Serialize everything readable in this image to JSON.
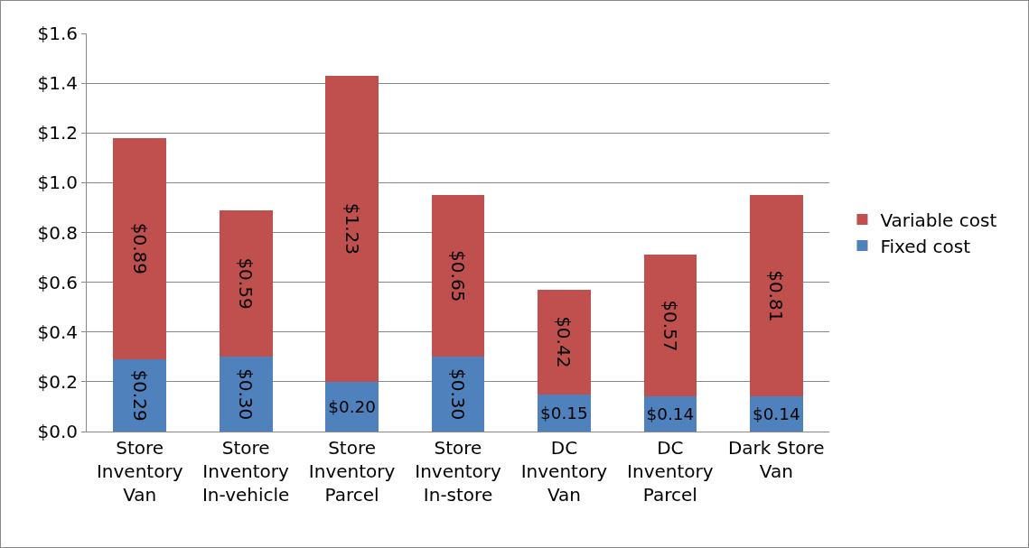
{
  "chart_data": {
    "type": "bar",
    "stacked": true,
    "categories": [
      "Store Inventory Van",
      "Store Inventory In-vehicle",
      "Store Inventory Parcel",
      "Store Inventory In-store",
      "DC Inventory Van",
      "DC Inventory Parcel",
      "Dark Store Van"
    ],
    "series": [
      {
        "name": "Fixed cost",
        "color": "#4f81bd",
        "values": [
          0.29,
          0.3,
          0.2,
          0.3,
          0.15,
          0.14,
          0.14
        ],
        "value_labels": [
          "$0.29",
          "$0.30",
          "$0.20",
          "$0.30",
          "$0.15",
          "$0.14",
          "$0.14"
        ]
      },
      {
        "name": "Variable cost",
        "color": "#c0504d",
        "values": [
          0.89,
          0.59,
          1.23,
          0.65,
          0.42,
          0.57,
          0.81
        ],
        "value_labels": [
          "$0.89",
          "$0.59",
          "$1.23",
          "$0.65",
          "$0.42",
          "$0.57",
          "$0.81"
        ]
      }
    ],
    "ylim": [
      0,
      1.6
    ],
    "yticks": [
      {
        "value": 0,
        "label": "$0.0"
      },
      {
        "value": 0.2,
        "label": "$0.2"
      },
      {
        "value": 0.4,
        "label": "$0.4"
      },
      {
        "value": 0.6,
        "label": "$0.6"
      },
      {
        "value": 0.8,
        "label": "$0.8"
      },
      {
        "value": 1.0,
        "label": "$1.0"
      },
      {
        "value": 1.2,
        "label": "$1.2"
      },
      {
        "value": 1.4,
        "label": "$1.4"
      },
      {
        "value": 1.6,
        "label": "$1.6"
      }
    ],
    "grid": "y",
    "legend": "right"
  }
}
